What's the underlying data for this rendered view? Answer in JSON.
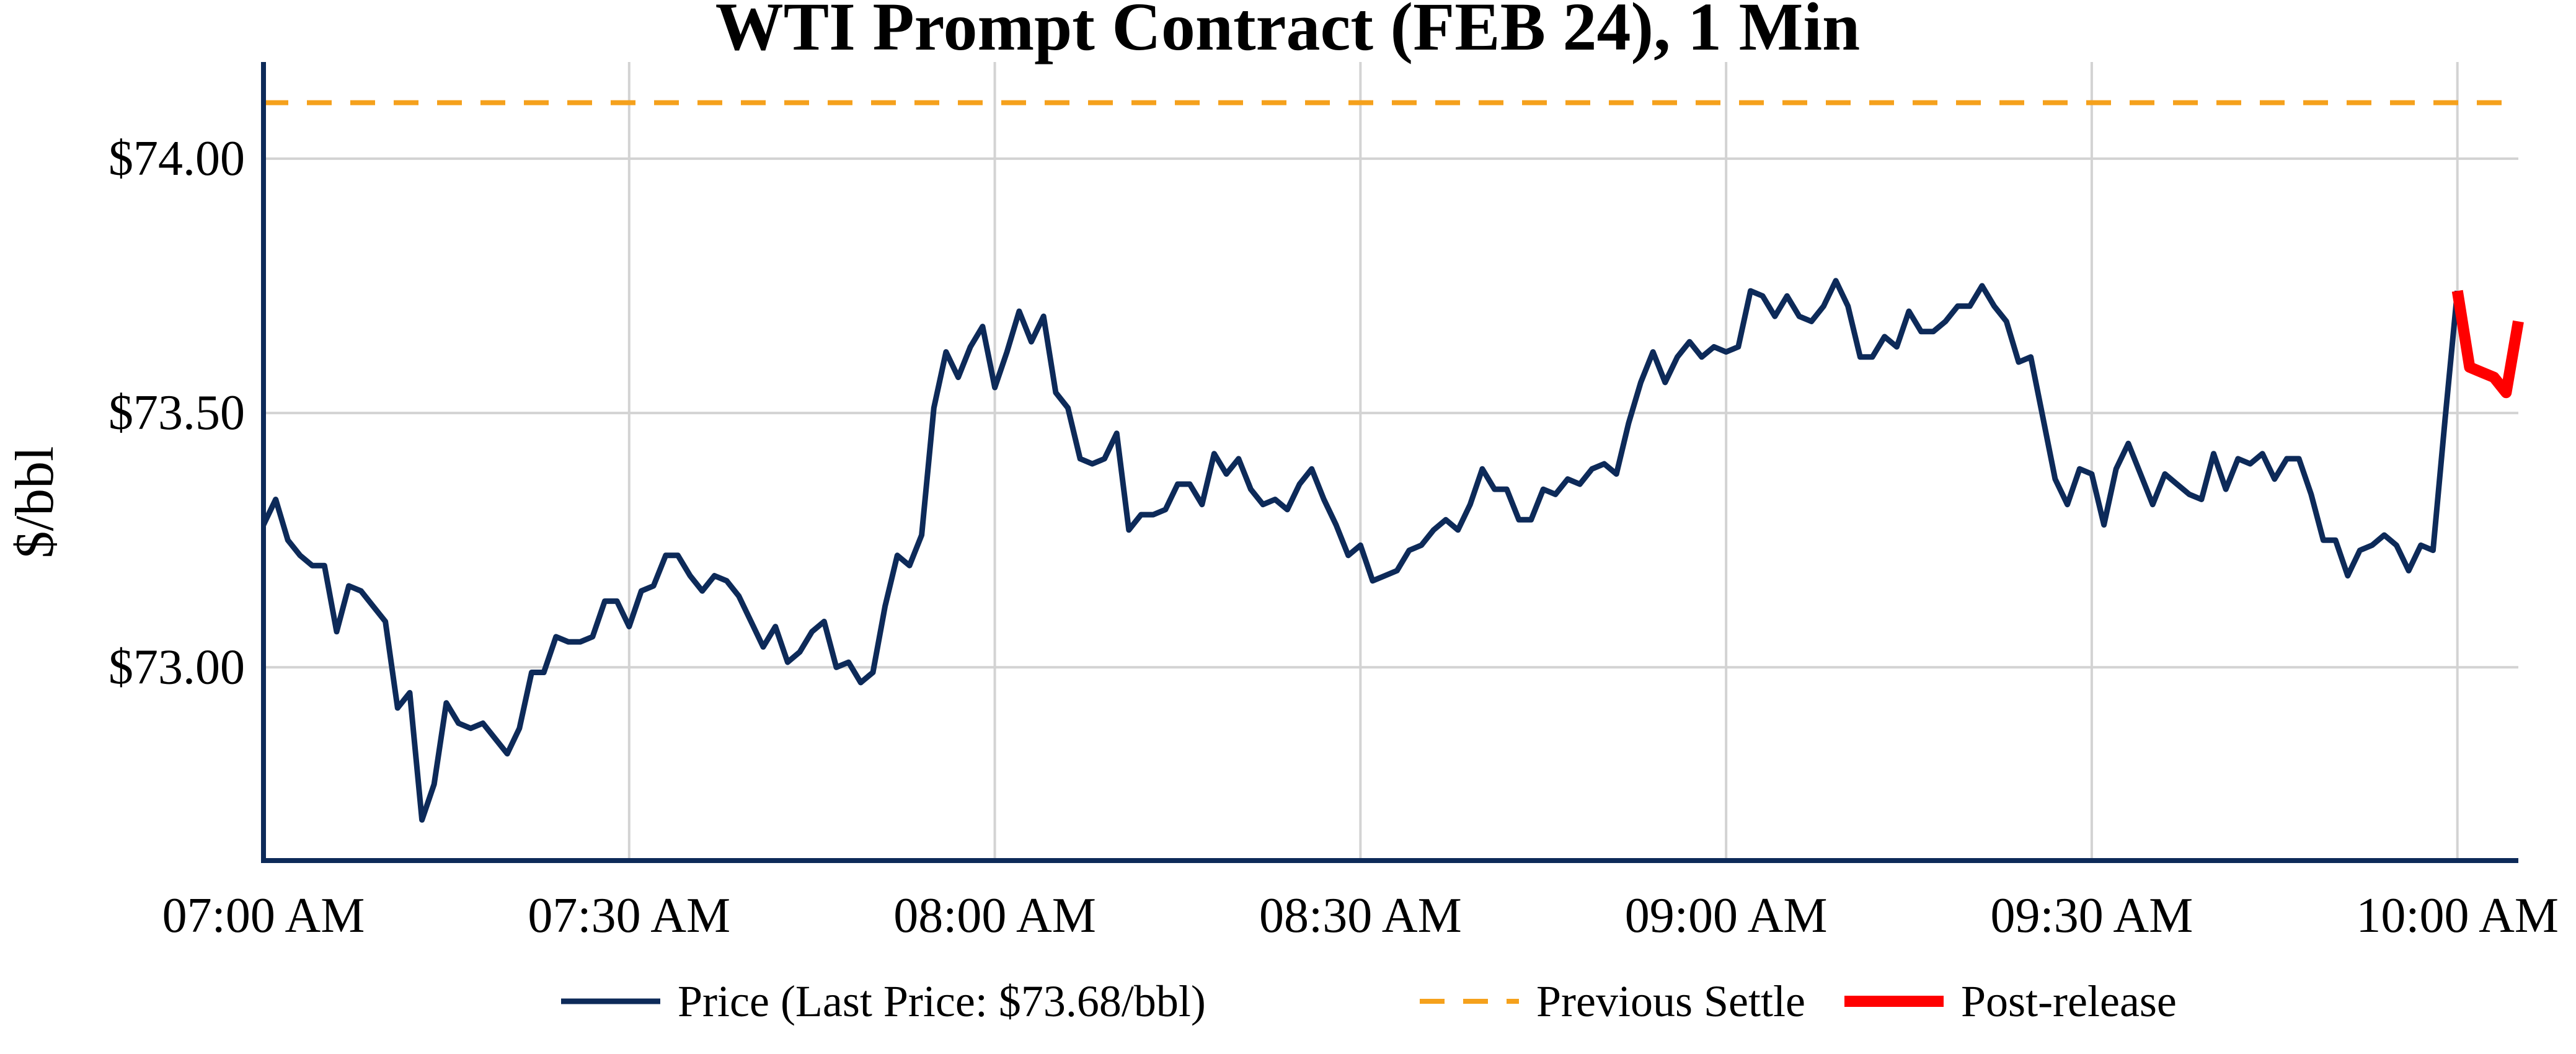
{
  "colors": {
    "price": "#0d2a59",
    "previous_settle": "#f5a11c",
    "post_release": "#ff0000",
    "grid": "#d3d3d3",
    "axis": "#0d2a59"
  },
  "chart_data": {
    "type": "line",
    "title": "WTI Prompt Contract (FEB 24), 1 Min",
    "xlabel": "",
    "ylabel": "$/bbl",
    "x_ticks": [
      "07:00 AM",
      "07:30 AM",
      "08:00 AM",
      "08:30 AM",
      "09:00 AM",
      "09:30 AM",
      "10:00 AM"
    ],
    "y_ticks": [
      "$73.00",
      "$73.50",
      "$74.00"
    ],
    "y_tick_values": [
      73.0,
      73.5,
      74.0
    ],
    "ylim": [
      72.62,
      74.19
    ],
    "xlim_minutes_from_start": [
      0,
      185
    ],
    "grid": true,
    "legend_position": "bottom",
    "legend": [
      "Price (Last Price: $73.68/bbl)",
      "Previous Settle",
      "Post-release"
    ],
    "series": [
      {
        "name": "Price (Last Price: $73.68/bbl)",
        "style": "line",
        "minutes_from_start": [
          0,
          1,
          2,
          3,
          4,
          5,
          6,
          7,
          8,
          9,
          10,
          11,
          12,
          13,
          14,
          15,
          16,
          17,
          18,
          19,
          20,
          21,
          22,
          23,
          24,
          25,
          26,
          27,
          28,
          29,
          30,
          31,
          32,
          33,
          34,
          35,
          36,
          37,
          38,
          39,
          40,
          41,
          42,
          43,
          44,
          45,
          46,
          47,
          48,
          49,
          50,
          51,
          52,
          53,
          54,
          55,
          56,
          57,
          58,
          59,
          60,
          61,
          62,
          63,
          64,
          65,
          66,
          67,
          68,
          69,
          70,
          71,
          72,
          73,
          74,
          75,
          76,
          77,
          78,
          79,
          80,
          81,
          82,
          83,
          84,
          85,
          86,
          87,
          88,
          89,
          90,
          91,
          92,
          93,
          94,
          95,
          96,
          97,
          98,
          99,
          100,
          101,
          102,
          103,
          104,
          105,
          106,
          107,
          108,
          109,
          110,
          111,
          112,
          113,
          114,
          115,
          116,
          117,
          118,
          119,
          120,
          121,
          122,
          123,
          124,
          125,
          126,
          127,
          128,
          129,
          130,
          131,
          132,
          133,
          134,
          135,
          136,
          137,
          138,
          139,
          140,
          141,
          142,
          143,
          144,
          145,
          146,
          147,
          148,
          149,
          150,
          151,
          152,
          153,
          154,
          155,
          156,
          157,
          158,
          159,
          160,
          161,
          162,
          163,
          164,
          165,
          166,
          167,
          168,
          169,
          170,
          171,
          172,
          173,
          174,
          175,
          176,
          177,
          178,
          179,
          180
        ],
        "values": [
          73.28,
          73.33,
          73.25,
          73.22,
          73.2,
          73.2,
          73.07,
          73.16,
          73.15,
          73.12,
          73.09,
          72.92,
          72.95,
          72.7,
          72.77,
          72.93,
          72.89,
          72.88,
          72.89,
          72.86,
          72.83,
          72.88,
          72.99,
          72.99,
          73.06,
          73.05,
          73.05,
          73.06,
          73.13,
          73.13,
          73.08,
          73.15,
          73.16,
          73.22,
          73.22,
          73.18,
          73.15,
          73.18,
          73.17,
          73.14,
          73.09,
          73.04,
          73.08,
          73.01,
          73.03,
          73.07,
          73.09,
          73.0,
          73.01,
          72.97,
          72.99,
          73.12,
          73.22,
          73.2,
          73.26,
          73.51,
          73.62,
          73.57,
          73.63,
          73.67,
          73.55,
          73.62,
          73.7,
          73.64,
          73.69,
          73.54,
          73.51,
          73.41,
          73.4,
          73.41,
          73.46,
          73.27,
          73.3,
          73.3,
          73.31,
          73.36,
          73.36,
          73.32,
          73.42,
          73.38,
          73.41,
          73.35,
          73.32,
          73.33,
          73.31,
          73.36,
          73.39,
          73.33,
          73.28,
          73.22,
          73.24,
          73.17,
          73.18,
          73.19,
          73.23,
          73.24,
          73.27,
          73.29,
          73.27,
          73.32,
          73.39,
          73.35,
          73.35,
          73.29,
          73.29,
          73.35,
          73.34,
          73.37,
          73.36,
          73.39,
          73.4,
          73.38,
          73.48,
          73.56,
          73.62,
          73.56,
          73.61,
          73.64,
          73.61,
          73.63,
          73.62,
          73.63,
          73.74,
          73.73,
          73.69,
          73.73,
          73.69,
          73.68,
          73.71,
          73.76,
          73.71,
          73.61,
          73.61,
          73.65,
          73.63,
          73.7,
          73.66,
          73.66,
          73.68,
          73.71,
          73.71,
          73.75,
          73.71,
          73.68,
          73.6,
          73.61,
          73.49,
          73.37,
          73.32,
          73.39,
          73.38,
          73.28,
          73.39,
          73.44,
          73.38,
          73.32,
          73.38,
          73.36,
          73.34,
          73.33,
          73.42,
          73.35,
          73.41,
          73.4,
          73.42,
          73.37,
          73.41,
          73.41,
          73.34,
          73.25,
          73.25,
          73.18,
          73.23,
          73.24,
          73.26,
          73.24,
          73.19,
          73.24,
          73.23,
          73.49,
          73.74
        ]
      },
      {
        "name": "Previous Settle",
        "style": "dashed",
        "minutes_from_start": [
          0,
          185
        ],
        "values": [
          74.11,
          74.11
        ]
      },
      {
        "name": "Post-release",
        "style": "line",
        "minutes_from_start": [
          180,
          181,
          182,
          183,
          184,
          185
        ],
        "values": [
          73.74,
          73.59,
          73.58,
          73.57,
          73.54,
          73.68
        ]
      }
    ]
  }
}
